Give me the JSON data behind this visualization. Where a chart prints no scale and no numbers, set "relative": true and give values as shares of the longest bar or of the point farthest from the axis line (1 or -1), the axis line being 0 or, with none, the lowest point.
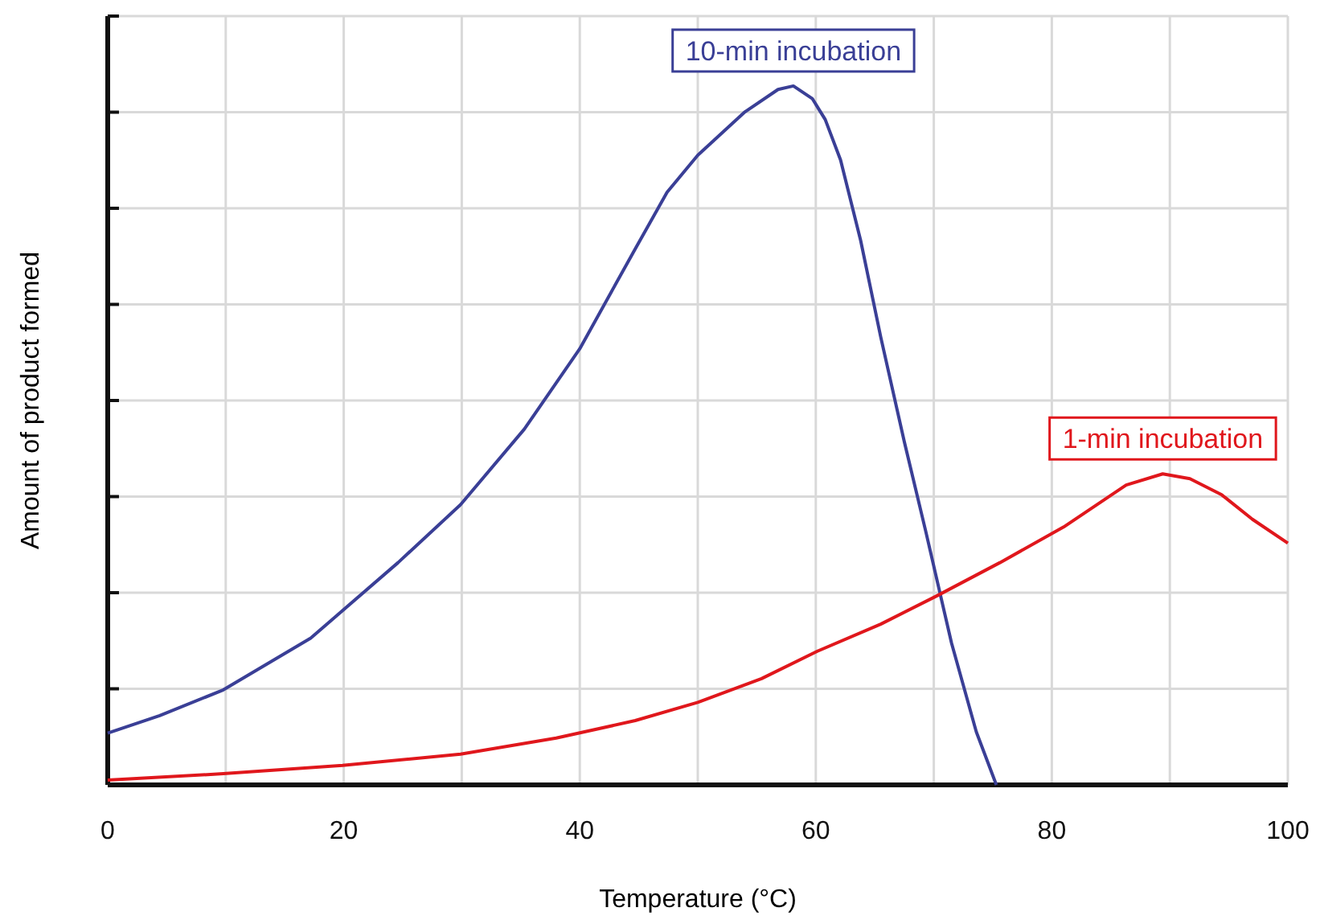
{
  "chart_data": {
    "type": "line",
    "xlabel": "Temperature (°C)",
    "ylabel": "Amount of product formed",
    "relative": true,
    "xlim": [
      0,
      100
    ],
    "xticks": [
      0,
      {
        "value": 10,
        "label": null
      },
      20,
      {
        "value": 30,
        "label": null
      },
      40,
      {
        "value": 50,
        "label": null
      },
      60,
      {
        "value": 70,
        "label": null
      },
      80,
      {
        "value": 90,
        "label": null
      },
      100
    ],
    "grid": true,
    "marker": "none",
    "line_style": "solid",
    "series": [
      {
        "name": "10-min incubation",
        "color": "#3a3f96",
        "x": [
          0,
          4.4,
          9.8,
          17.2,
          24.6,
          29.9,
          35.3,
          40,
          44.7,
          47.4,
          50,
          54,
          56.8,
          58.1,
          59.7,
          60.8,
          62.1,
          63.8,
          65.5,
          67.5,
          69.3,
          71.5,
          73.6,
          75.3
        ],
        "values": [
          0.074,
          0.099,
          0.136,
          0.21,
          0.318,
          0.401,
          0.509,
          0.624,
          0.767,
          0.848,
          0.901,
          0.963,
          0.995,
          1,
          0.982,
          0.952,
          0.894,
          0.779,
          0.641,
          0.491,
          0.364,
          0.203,
          0.076,
          0
        ]
      },
      {
        "name": "1-min incubation",
        "color": "#e0171c",
        "x": [
          0,
          9.8,
          19.9,
          29.9,
          38,
          44.7,
          50,
          55.4,
          60.1,
          65.5,
          70.2,
          75.6,
          81,
          86.3,
          89.4,
          91.7,
          94.4,
          97,
          100
        ],
        "values": [
          0.007,
          0.016,
          0.028,
          0.044,
          0.067,
          0.092,
          0.118,
          0.152,
          0.191,
          0.23,
          0.27,
          0.318,
          0.369,
          0.429,
          0.445,
          0.438,
          0.415,
          0.38,
          0.346
        ]
      }
    ]
  }
}
